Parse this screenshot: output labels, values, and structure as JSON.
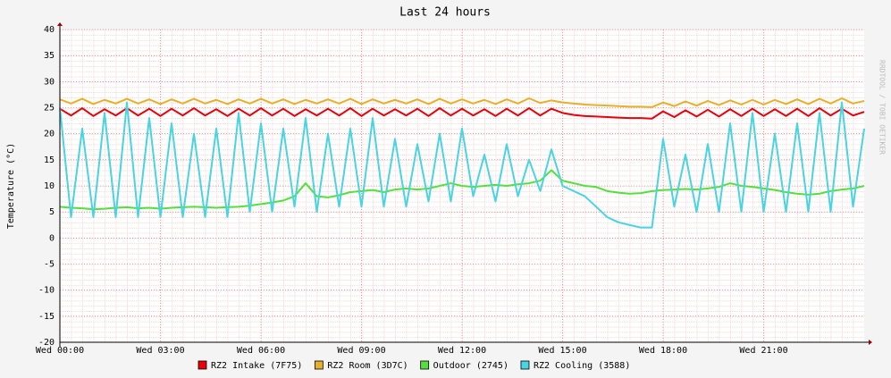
{
  "chart_data": {
    "type": "line",
    "title": "Last 24 hours",
    "y_label": "Temperature (°C)",
    "watermark": "RRDTOOL / TOBI OETIKER",
    "x": [
      0,
      20,
      40,
      60,
      80,
      100,
      120,
      140,
      160,
      180,
      200,
      220,
      240,
      260,
      280,
      300,
      320,
      340,
      360,
      380,
      400,
      420,
      440,
      460,
      480,
      500,
      520,
      540,
      560,
      580,
      600,
      620,
      640,
      660,
      680,
      700,
      720,
      740,
      760,
      780,
      800,
      820,
      840,
      860,
      880,
      900,
      920,
      940,
      960,
      980,
      1000,
      1020,
      1040,
      1060,
      1080,
      1100,
      1120,
      1140,
      1160,
      1180,
      1200,
      1220,
      1240,
      1260,
      1280,
      1300,
      1320,
      1340,
      1360,
      1380,
      1400,
      1420,
      1440
    ],
    "xlim": [
      0,
      1440
    ],
    "xticks": [
      {
        "value": 0,
        "label": "Wed 00:00"
      },
      {
        "value": 180,
        "label": "Wed 03:00"
      },
      {
        "value": 360,
        "label": "Wed 06:00"
      },
      {
        "value": 540,
        "label": "Wed 09:00"
      },
      {
        "value": 720,
        "label": "Wed 12:00"
      },
      {
        "value": 900,
        "label": "Wed 15:00"
      },
      {
        "value": 1080,
        "label": "Wed 18:00"
      },
      {
        "value": 1260,
        "label": "Wed 21:00"
      }
    ],
    "ylim": [
      -20,
      40
    ],
    "yticks": [
      40,
      35,
      30,
      25,
      20,
      15,
      10,
      5,
      0,
      -5,
      -10,
      -15,
      -20
    ],
    "grid": true,
    "series": [
      {
        "name": "RZ2 Intake (7F75)",
        "color": "#e8000b",
        "values": [
          24.8,
          23.5,
          24.9,
          23.4,
          24.7,
          23.5,
          24.9,
          23.5,
          24.8,
          23.4,
          24.8,
          23.5,
          24.9,
          23.5,
          24.7,
          23.4,
          24.8,
          23.5,
          24.9,
          23.5,
          24.8,
          23.4,
          24.7,
          23.5,
          24.8,
          23.5,
          24.9,
          23.4,
          24.8,
          23.5,
          24.7,
          23.5,
          24.8,
          23.4,
          24.9,
          23.5,
          24.8,
          23.5,
          24.7,
          23.4,
          24.8,
          23.5,
          24.9,
          23.5,
          24.8,
          24,
          23.6,
          23.4,
          23.3,
          23.2,
          23.1,
          23,
          23,
          22.9,
          24.3,
          23.2,
          24.5,
          23.3,
          24.6,
          23.3,
          24.7,
          23.4,
          24.8,
          23.4,
          24.7,
          23.4,
          24.8,
          23.4,
          24.9,
          23.5,
          24.8,
          23.5,
          24.2
        ]
      },
      {
        "name": "RZ2 Room (3D7C)",
        "color": "#e8b028",
        "values": [
          26.6,
          25.8,
          26.7,
          25.7,
          26.5,
          25.8,
          26.7,
          25.8,
          26.6,
          25.7,
          26.6,
          25.8,
          26.7,
          25.8,
          26.5,
          25.7,
          26.6,
          25.8,
          26.7,
          25.8,
          26.6,
          25.7,
          26.5,
          25.8,
          26.6,
          25.8,
          26.7,
          25.7,
          26.6,
          25.8,
          26.5,
          25.8,
          26.6,
          25.7,
          26.7,
          25.8,
          26.6,
          25.8,
          26.5,
          25.7,
          26.6,
          25.8,
          26.8,
          25.9,
          26.4,
          26,
          25.8,
          25.6,
          25.5,
          25.4,
          25.3,
          25.2,
          25.2,
          25.1,
          26,
          25.3,
          26.2,
          25.4,
          26.3,
          25.5,
          26.4,
          25.6,
          26.5,
          25.6,
          26.5,
          25.7,
          26.6,
          25.7,
          26.7,
          25.8,
          26.8,
          25.8,
          26.3
        ]
      },
      {
        "name": "Outdoor (2745)",
        "color": "#54e03c",
        "values": [
          6,
          5.8,
          5.7,
          5.5,
          5.6,
          5.8,
          5.9,
          5.7,
          5.8,
          5.6,
          5.8,
          5.9,
          6,
          5.9,
          5.8,
          5.9,
          6,
          6.2,
          6.5,
          6.8,
          7.2,
          8,
          10.5,
          8,
          7.8,
          8.2,
          8.8,
          9,
          9.2,
          8.8,
          9.3,
          9.5,
          9.3,
          9.5,
          10,
          10.5,
          10,
          9.8,
          10,
          10.2,
          10,
          10.3,
          10.5,
          11,
          13,
          11,
          10.5,
          10,
          9.8,
          9,
          8.7,
          8.5,
          8.6,
          9,
          9.2,
          9.3,
          9.4,
          9.3,
          9.5,
          9.8,
          10.5,
          10,
          9.8,
          9.5,
          9.2,
          8.8,
          8.5,
          8.3,
          8.5,
          9,
          9.3,
          9.5,
          10
        ]
      },
      {
        "name": "RZ2 Cooling (3588)",
        "color": "#48d4e0",
        "values": [
          25,
          4,
          21,
          4,
          24,
          4,
          26,
          4,
          23,
          4,
          22,
          4,
          20,
          4,
          21,
          4,
          24,
          5,
          22,
          5,
          21,
          6,
          23,
          5,
          20,
          6,
          21,
          6,
          23,
          6,
          19,
          6,
          18,
          7,
          20,
          7,
          21,
          8,
          16,
          7,
          18,
          8,
          15,
          9,
          17,
          10,
          9,
          8,
          6,
          4,
          3,
          2.5,
          2,
          2,
          19,
          6,
          16,
          5,
          18,
          5,
          22,
          5,
          24,
          5,
          20,
          5,
          22,
          5,
          24,
          5,
          26,
          6,
          21
        ]
      }
    ]
  }
}
